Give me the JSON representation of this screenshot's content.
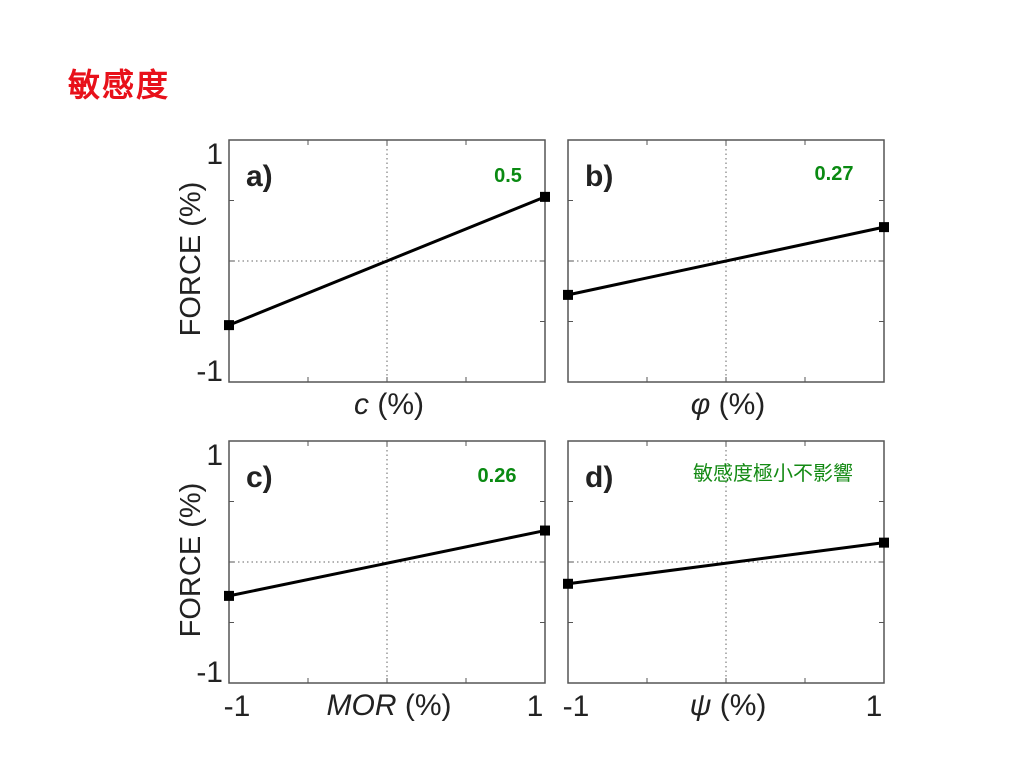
{
  "slide": {
    "title": "敏感度",
    "title_color": "#e8111a"
  },
  "annotation": {
    "text": "敏感度極小不影響",
    "color": "#148a14"
  },
  "coef_color": "#0a8a12",
  "chart_data": [
    {
      "type": "line",
      "panel": "a)",
      "xlabel_var": "c",
      "xlabel_unit": "(%)",
      "ylabel": "FORCE (%)",
      "xlim": [
        -1,
        1
      ],
      "ylim": [
        -1,
        1
      ],
      "yticks": [
        "1",
        "-1"
      ],
      "xticks": [],
      "grid": "dotted-zero",
      "series": [
        {
          "x": [
            -1,
            1
          ],
          "y": [
            -0.53,
            0.53
          ]
        }
      ],
      "coefficient": "0.5"
    },
    {
      "type": "line",
      "panel": "b)",
      "xlabel_var": "φ",
      "xlabel_unit": "(%)",
      "ylabel": "",
      "xlim": [
        -1,
        1
      ],
      "ylim": [
        -1,
        1
      ],
      "yticks": [],
      "xticks": [],
      "grid": "dotted-zero",
      "series": [
        {
          "x": [
            -1,
            1
          ],
          "y": [
            -0.28,
            0.28
          ]
        }
      ],
      "coefficient": "0.27"
    },
    {
      "type": "line",
      "panel": "c)",
      "xlabel_var": "MOR",
      "xlabel_unit": "(%)",
      "ylabel": "FORCE (%)",
      "xlim": [
        -1,
        1
      ],
      "ylim": [
        -1,
        1
      ],
      "yticks": [
        "1",
        "-1"
      ],
      "xticks": [
        "-1",
        "1"
      ],
      "grid": "dotted-zero",
      "series": [
        {
          "x": [
            -1,
            1
          ],
          "y": [
            -0.28,
            0.26
          ]
        }
      ],
      "coefficient": "0.26"
    },
    {
      "type": "line",
      "panel": "d)",
      "xlabel_var": "ψ",
      "xlabel_unit": "(%)",
      "ylabel": "",
      "xlim": [
        -1,
        1
      ],
      "ylim": [
        -1,
        1
      ],
      "yticks": [],
      "xticks": [
        "-1",
        "1"
      ],
      "grid": "dotted-zero",
      "series": [
        {
          "x": [
            -1,
            1
          ],
          "y": [
            -0.18,
            0.16
          ]
        }
      ],
      "coefficient": ""
    }
  ]
}
